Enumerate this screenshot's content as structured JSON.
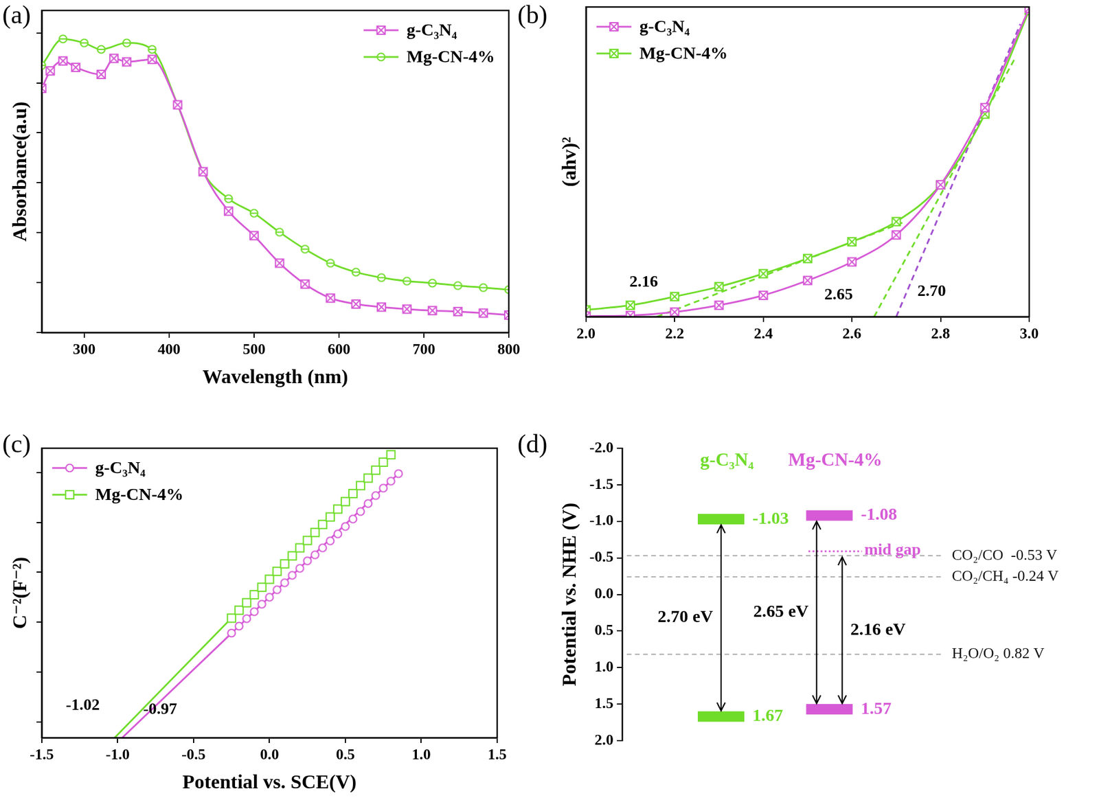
{
  "chart_data": [
    {
      "panel": "(a)",
      "type": "line",
      "x_label": "Wavelength (nm)",
      "y_label": "Absorbance(a.u)",
      "xlim": [
        250,
        800
      ],
      "xticks": [
        300,
        400,
        500,
        600,
        700,
        800
      ],
      "ylim": [
        0,
        6.45
      ],
      "yticks": [
        0,
        1,
        2,
        3,
        4,
        5,
        6
      ],
      "tick_labels": "x",
      "legend": "upper right",
      "grid": false,
      "series": [
        {
          "name": "g-C₃N₄",
          "color": "#d65ad6",
          "marker": "boxed_x",
          "x": [
            250,
            260,
            275,
            290,
            320,
            335,
            350,
            380,
            410,
            440,
            470,
            500,
            530,
            560,
            590,
            620,
            650,
            680,
            710,
            740,
            770,
            800
          ],
          "values": [
            4.89,
            5.24,
            5.44,
            5.31,
            5.17,
            5.49,
            5.42,
            5.47,
            4.56,
            3.22,
            2.43,
            1.94,
            1.39,
            0.97,
            0.69,
            0.57,
            0.51,
            0.47,
            0.44,
            0.42,
            0.39,
            0.35
          ]
        },
        {
          "name": "Mg-CN-4%",
          "color": "#70dc2a",
          "marker": "circle",
          "x": [
            250,
            275,
            300,
            320,
            350,
            380,
            410,
            440,
            470,
            500,
            530,
            560,
            590,
            620,
            650,
            680,
            710,
            740,
            770,
            800
          ],
          "values": [
            5.35,
            5.88,
            5.8,
            5.67,
            5.8,
            5.67,
            4.56,
            3.22,
            2.68,
            2.39,
            2.01,
            1.67,
            1.39,
            1.21,
            1.1,
            1.03,
            0.99,
            0.94,
            0.9,
            0.86
          ]
        }
      ]
    },
    {
      "panel": "(b)",
      "type": "line",
      "y_label": "(ahv)²",
      "xlim": [
        2,
        3
      ],
      "xticks": [
        {
          "value": 2,
          "label": "2.0"
        },
        2.2,
        2.4,
        2.6,
        2.8,
        {
          "value": 3,
          "label": "3.0"
        }
      ],
      "ylim": [
        0,
        10
      ],
      "tick_labels": "x",
      "legend": "upper left",
      "grid": false,
      "series": [
        {
          "name": "g-C₃N₄",
          "color": "#d65ad6",
          "marker": "boxed_x",
          "x": [
            2.0,
            2.1,
            2.2,
            2.3,
            2.4,
            2.5,
            2.6,
            2.7,
            2.8,
            2.9,
            3.0
          ],
          "values": [
            0.02,
            0.04,
            0.15,
            0.37,
            0.69,
            1.17,
            1.77,
            2.64,
            4.26,
            6.75,
            9.96
          ]
        },
        {
          "name": "Mg-CN-4%",
          "color": "#70dc2a",
          "marker": "boxed_x",
          "x": [
            2.0,
            2.1,
            2.2,
            2.3,
            2.4,
            2.5,
            2.6,
            2.7,
            2.8,
            2.9,
            3.0
          ],
          "values": [
            0.22,
            0.37,
            0.65,
            0.97,
            1.39,
            1.88,
            2.42,
            3.07,
            4.26,
            6.54,
            9.89
          ]
        },
        {
          "color": "#a050d0",
          "marker": "none",
          "line_style": "dashed",
          "x": [
            2.7,
            2.98
          ],
          "values": [
            0,
            9.45
          ]
        },
        {
          "color": "#70dc2a",
          "marker": "none",
          "line_style": "dashed",
          "x": [
            2.65,
            2.97
          ],
          "values": [
            0,
            8.4
          ]
        },
        {
          "color": "#70dc2a",
          "marker": "none",
          "line_style": "dashed",
          "x": [
            2.16,
            2.72
          ],
          "values": [
            0,
            3.07
          ]
        }
      ],
      "annotations": [
        {
          "text": "2.16",
          "x": 2.13,
          "y": 1.1
        },
        {
          "text": "2.65",
          "x": 2.57,
          "y": 0.7
        },
        {
          "text": "2.70",
          "x": 2.78,
          "y": 0.8
        }
      ]
    },
    {
      "panel": "(c)",
      "type": "scatter",
      "x_label": "Potential vs. SCE(V)",
      "y_label": "C⁻²(F⁻²)",
      "xlim": [
        -1.5,
        1.5
      ],
      "xticks": [
        -1.5,
        {
          "value": -1,
          "label": "-1.0"
        },
        -0.5,
        {
          "value": 0,
          "label": "0.0"
        },
        0.5,
        {
          "value": 1,
          "label": "1.0"
        },
        1.5
      ],
      "ylim": [
        0.68,
        6.49
      ],
      "yticks": [
        1,
        2,
        3,
        4,
        5,
        6
      ],
      "tick_labels": "x",
      "legend": "upper left",
      "grid": false,
      "series": [
        {
          "name": "g-C₃N₄",
          "color": "#d65ad6",
          "marker": "open_circle",
          "x": [
            -0.25,
            -0.2,
            -0.15,
            -0.1,
            -0.05,
            0,
            0.05,
            0.1,
            0.15,
            0.2,
            0.25,
            0.3,
            0.35,
            0.4,
            0.45,
            0.5,
            0.55,
            0.6,
            0.65,
            0.7,
            0.75,
            0.8,
            0.85
          ],
          "values": [
            2.78,
            2.92,
            3.07,
            3.21,
            3.36,
            3.5,
            3.65,
            3.79,
            3.94,
            4.08,
            4.23,
            4.35,
            4.49,
            4.63,
            4.77,
            4.92,
            5.07,
            5.22,
            5.38,
            5.54,
            5.69,
            5.83,
            5.98
          ]
        },
        {
          "name": "Mg-CN-4%",
          "color": "#70dc2a",
          "marker": "open_square",
          "x": [
            -0.25,
            -0.2,
            -0.15,
            -0.1,
            -0.05,
            0,
            0.05,
            0.1,
            0.15,
            0.2,
            0.25,
            0.3,
            0.35,
            0.4,
            0.45,
            0.5,
            0.55,
            0.6,
            0.65,
            0.7,
            0.75,
            0.8
          ],
          "values": [
            3.08,
            3.24,
            3.39,
            3.55,
            3.7,
            3.86,
            4.02,
            4.17,
            4.33,
            4.49,
            4.64,
            4.8,
            4.96,
            5.11,
            5.27,
            5.42,
            5.58,
            5.74,
            5.89,
            6.05,
            6.21,
            6.36
          ]
        },
        {
          "color": "#d65ad6",
          "marker": "none",
          "line_style": "solid",
          "x": [
            -0.97,
            0.87
          ],
          "values": [
            0.68,
            6.04
          ]
        },
        {
          "color": "#70dc2a",
          "marker": "none",
          "line_style": "solid",
          "x": [
            -1.02,
            0.82
          ],
          "values": [
            0.68,
            6.42
          ]
        }
      ],
      "annotations": [
        {
          "text": "-1.02",
          "x": -1.23,
          "y": 1.32
        },
        {
          "text": "-0.97",
          "x": -0.72,
          "y": 1.24
        }
      ]
    },
    {
      "panel": "(d)",
      "type": "band",
      "y_label": "Potential vs. NHE (V)",
      "ylim": [
        2,
        -2
      ],
      "yticks": [
        {
          "value": 2,
          "label": "2.0"
        },
        1.5,
        {
          "value": 1,
          "label": "1.0"
        },
        0.5,
        {
          "value": 0,
          "label": "0.0"
        },
        -0.5,
        {
          "value": -1,
          "label": "-1.0"
        },
        -1.5,
        {
          "value": -2,
          "label": "-2.0"
        }
      ],
      "references": [
        {
          "label": "CO₂/CO  -0.53 V",
          "value": -0.53
        },
        {
          "label": "CO₂/CH₄ -0.24 V",
          "value": -0.24
        },
        {
          "label": "H₂O/O₂ 0.82 V",
          "value": 0.82
        }
      ],
      "materials": [
        {
          "name": "g-C₃N₄",
          "color": "#70dc2a",
          "cb": -1.03,
          "vb": 1.67,
          "gaps": [
            {
              "value": 2.7,
              "label": "2.70 eV"
            }
          ]
        },
        {
          "name": "Mg-CN-4%",
          "color": "#d65ad6",
          "cb": -1.08,
          "vb": 1.57,
          "mid_gap": -0.59,
          "mid_gap_label": "mid gap",
          "gaps": [
            {
              "value": 2.65,
              "label": "2.65 eV"
            },
            {
              "value": 2.16,
              "label": "2.16 eV"
            }
          ]
        }
      ]
    }
  ]
}
